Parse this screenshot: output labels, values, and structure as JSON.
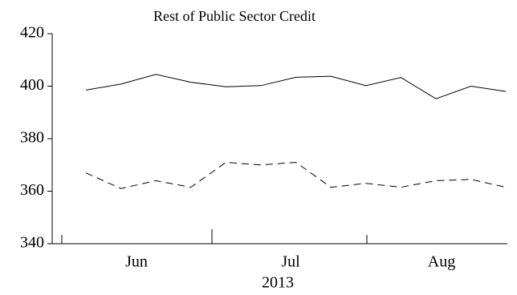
{
  "chart_data": {
    "type": "line",
    "title": "Rest of Public Sector Credit",
    "categories": [
      null,
      null,
      null,
      null,
      null,
      null,
      null,
      null,
      null,
      null,
      null,
      null,
      null
    ],
    "month_labels": [
      "Jun",
      "Jul",
      "Aug"
    ],
    "xlabel": "2013",
    "series": [
      {
        "color": "#000000",
        "dash": false,
        "values": [
          398.5,
          400.8,
          404.5,
          401.5,
          399.8,
          400.2,
          403.4,
          403.8,
          400.2,
          403.3,
          395.2,
          400,
          398
        ]
      },
      {
        "color": "#000000",
        "dash": true,
        "values": [
          367,
          361,
          364,
          361.5,
          371,
          370,
          371,
          361.5,
          363,
          361.5,
          364,
          364.5,
          361.5
        ]
      }
    ],
    "ylim": [
      340,
      420
    ],
    "yticks": [
      340,
      360,
      380,
      400,
      420
    ],
    "grid": false
  }
}
